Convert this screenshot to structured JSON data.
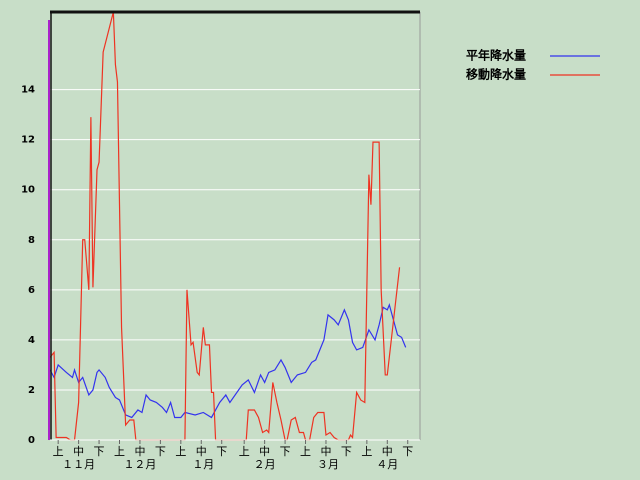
{
  "chart_data": {
    "type": "line",
    "xlim": [
      0,
      181
    ],
    "ylim": [
      0,
      17.1
    ],
    "yticks": [
      0,
      2,
      4,
      6,
      8,
      10,
      12,
      14
    ],
    "xticks": [
      {
        "value": 4,
        "label": "上"
      },
      {
        "value": 14,
        "label": "中"
      },
      {
        "value": 24,
        "label": "下"
      },
      {
        "value": 34,
        "label": "上"
      },
      {
        "value": 44,
        "label": "中"
      },
      {
        "value": 54,
        "label": "下"
      },
      {
        "value": 64,
        "label": "上"
      },
      {
        "value": 74,
        "label": "中"
      },
      {
        "value": 84,
        "label": "下"
      },
      {
        "value": 95,
        "label": "上"
      },
      {
        "value": 105,
        "label": "中"
      },
      {
        "value": 115,
        "label": "下"
      },
      {
        "value": 125,
        "label": "上"
      },
      {
        "value": 135,
        "label": "中"
      },
      {
        "value": 145,
        "label": "下"
      },
      {
        "value": 155,
        "label": "上"
      },
      {
        "value": 165,
        "label": "中"
      },
      {
        "value": 175,
        "label": "下"
      }
    ],
    "month_labels": [
      {
        "value": 14,
        "label": "１１月"
      },
      {
        "value": 44,
        "label": "１２月"
      },
      {
        "value": 75,
        "label": "１月"
      },
      {
        "value": 105,
        "label": "２月"
      },
      {
        "value": 136,
        "label": "３月"
      },
      {
        "value": 165,
        "label": "４月"
      }
    ],
    "grid": true,
    "series": [
      {
        "name": "平年降水量",
        "color": "#3333ee",
        "x": [
          0,
          2,
          4,
          8,
          11,
          12,
          14,
          16,
          19,
          21,
          23,
          24,
          27,
          29,
          32,
          34,
          37,
          40,
          43,
          45,
          47,
          49,
          52,
          55,
          57,
          59,
          61,
          64,
          66,
          71,
          75,
          79,
          83,
          86,
          88,
          94,
          97,
          100,
          103,
          105,
          107,
          110,
          113,
          115,
          118,
          121,
          125,
          128,
          130,
          134,
          136,
          139,
          141,
          144,
          146,
          148,
          150,
          153,
          156,
          159,
          161,
          163,
          165,
          166,
          168,
          170,
          172,
          174
        ],
        "values": [
          2.8,
          2.5,
          3.0,
          2.7,
          2.5,
          2.8,
          2.3,
          2.5,
          1.8,
          2.0,
          2.7,
          2.8,
          2.5,
          2.1,
          1.7,
          1.6,
          1.0,
          0.9,
          1.2,
          1.1,
          1.8,
          1.6,
          1.5,
          1.3,
          1.1,
          1.5,
          0.9,
          0.9,
          1.1,
          1.0,
          1.1,
          0.9,
          1.5,
          1.8,
          1.5,
          2.2,
          2.4,
          1.9,
          2.6,
          2.3,
          2.7,
          2.8,
          3.2,
          2.9,
          2.3,
          2.6,
          2.7,
          3.1,
          3.2,
          4.0,
          5.0,
          4.8,
          4.6,
          5.2,
          4.8,
          3.9,
          3.6,
          3.7,
          4.4,
          4.0,
          4.6,
          5.3,
          5.2,
          5.4,
          4.8,
          4.2,
          4.1,
          3.7
        ]
      },
      {
        "name": "移動降水量",
        "color": "#ee3322",
        "x": [
          0,
          2,
          3,
          8,
          10,
          12,
          14,
          16,
          17,
          19,
          20,
          21,
          23,
          24,
          26,
          31,
          32,
          33,
          35,
          37,
          39,
          41,
          42,
          66,
          67,
          69,
          70,
          72,
          73,
          75,
          76,
          78,
          79,
          80,
          81,
          96,
          97,
          100,
          102,
          104,
          106,
          107,
          109,
          111,
          113,
          115,
          116,
          118,
          120,
          122,
          124,
          125,
          127,
          129,
          131,
          134,
          135,
          137,
          139,
          141,
          146,
          147,
          148,
          150,
          152,
          154,
          156,
          157,
          158,
          161,
          162,
          164,
          165,
          171
        ],
        "values": [
          3.3,
          3.5,
          0.1,
          0.1,
          0,
          0,
          1.5,
          8.0,
          8.0,
          6.0,
          12.9,
          6.1,
          10.8,
          11.1,
          15.5,
          17.1,
          15.0,
          14.3,
          4.5,
          0.6,
          0.8,
          0.8,
          0,
          0,
          6.0,
          3.8,
          3.9,
          2.7,
          2.6,
          4.5,
          3.8,
          3.8,
          1.9,
          1.9,
          0,
          0,
          1.2,
          1.2,
          0.9,
          0.3,
          0.4,
          0.3,
          2.3,
          1.5,
          0.8,
          0,
          0,
          0.8,
          0.9,
          0.3,
          0.3,
          0,
          0,
          0.9,
          1.1,
          1.1,
          0.2,
          0.3,
          0.1,
          0,
          0,
          0.2,
          0.1,
          1.9,
          1.6,
          1.5,
          10.6,
          9.4,
          11.9,
          11.9,
          6.0,
          2.6,
          2.6,
          6.9
        ]
      }
    ]
  }
}
